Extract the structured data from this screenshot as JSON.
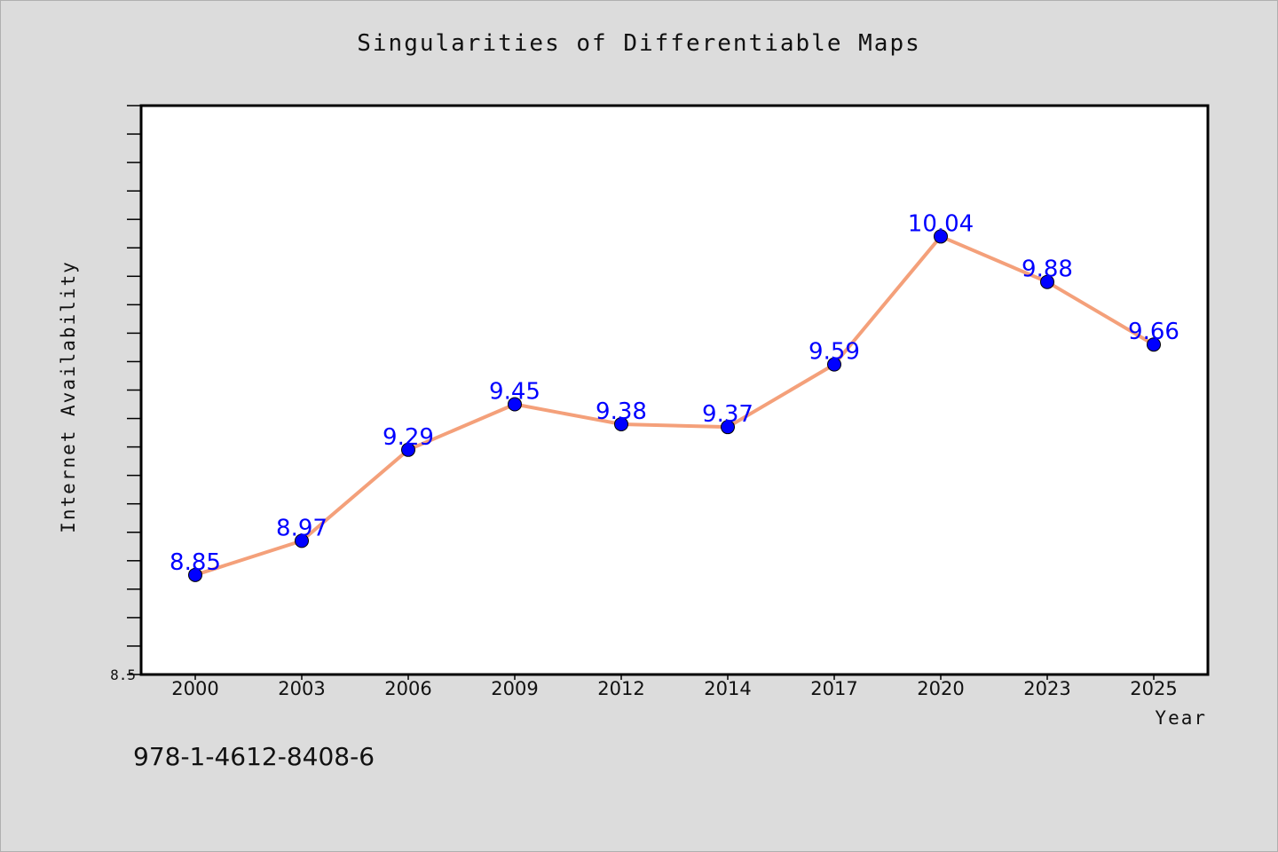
{
  "chart_data": {
    "type": "line",
    "title": "Singularities of Differentiable Maps",
    "xlabel": "Year",
    "ylabel": "Internet Availability",
    "categories": [
      "2000",
      "2003",
      "2006",
      "2009",
      "2012",
      "2014",
      "2017",
      "2020",
      "2023",
      "2025"
    ],
    "series": [
      {
        "values": [
          8.85,
          8.97,
          9.29,
          9.45,
          9.38,
          9.37,
          9.59,
          10.04,
          9.88,
          9.66
        ],
        "line_color": "#f4a07a",
        "marker_color": "#0000ff"
      }
    ],
    "ylim": [
      8.5,
      10.5
    ],
    "y_tick_labels": [
      "8.5"
    ],
    "data_labels": [
      "8.85",
      "8.97",
      "9.29",
      "9.45",
      "9.38",
      "9.37",
      "9.59",
      "10.04",
      "9.88",
      "9.66"
    ],
    "grid": false,
    "legend": "none"
  },
  "footer": {
    "isbn": "978-1-4612-8408-6"
  },
  "colors": {
    "background": "#dcdcdc",
    "plot_background": "#ffffff",
    "line": "#f4a07a",
    "marker": "#0000ff",
    "data_label": "#0000ff"
  }
}
